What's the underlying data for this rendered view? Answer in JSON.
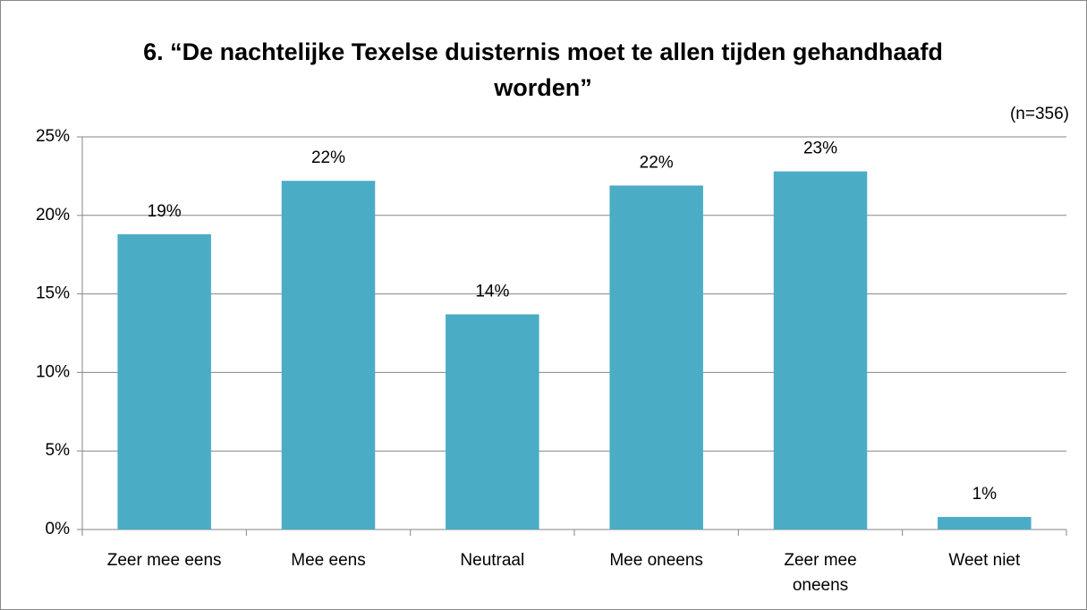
{
  "chart_data": {
    "type": "bar",
    "title": "6. “De nachtelijke Texelse duisternis moet te allen tijden gehandhaafd worden”",
    "annotation": "(n=356)",
    "categories": [
      "Zeer mee eens",
      "Mee eens",
      "Neutraal",
      "Mee oneens",
      "Zeer mee oneens",
      "Weet niet"
    ],
    "values": [
      18.8,
      22.2,
      13.7,
      21.9,
      22.8,
      0.8
    ],
    "value_labels": [
      "19%",
      "22%",
      "14%",
      "22%",
      "23%",
      "1%"
    ],
    "color": "#4bacc6",
    "ylim": [
      0,
      25
    ],
    "yticks": [
      {
        "value": 0,
        "label": "0%"
      },
      {
        "value": 5,
        "label": "5%"
      },
      {
        "value": 10,
        "label": "10%"
      },
      {
        "value": 15,
        "label": "15%"
      },
      {
        "value": 20,
        "label": "20%"
      },
      {
        "value": 25,
        "label": "25%"
      }
    ],
    "grid": true
  }
}
